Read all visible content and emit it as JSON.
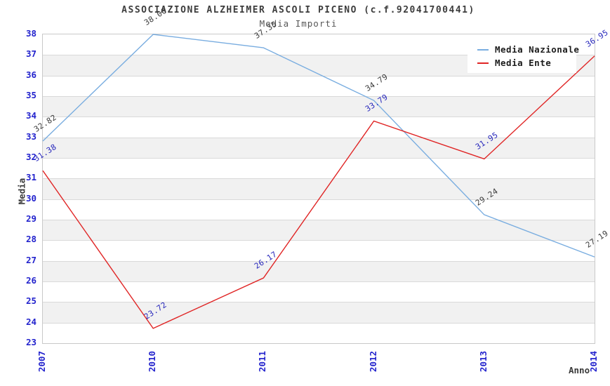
{
  "title": "ASSOCIAZIONE ALZHEIMER ASCOLI PICENO (c.f.92041700441)",
  "subtitle": "Media Importi",
  "chart_data": {
    "type": "line",
    "categories": [
      "2007",
      "2010",
      "2011",
      "2012",
      "2013",
      "2014"
    ],
    "series": [
      {
        "name": "Media Nazionale",
        "color": "#79ade0",
        "label_color": "#3a3a3a",
        "values": [
          32.82,
          38.0,
          37.35,
          34.79,
          29.24,
          27.19
        ]
      },
      {
        "name": "Media Ente",
        "color": "#e02525",
        "label_color": "#2525bb",
        "values": [
          31.38,
          23.72,
          26.17,
          33.79,
          31.95,
          36.95
        ]
      }
    ],
    "xlabel": "Anno",
    "ylabel": "Media",
    "ylim": [
      23,
      38
    ],
    "ytick_step": 1,
    "value_label_decimals": 2,
    "legend_position": "top-right",
    "grid": "horizontal-only",
    "plot_band_colors": [
      "#ffffff",
      "#f1f1f1"
    ],
    "gridline_color": "#d9d9d9",
    "plot_border_color": "#c9c9c9",
    "tick_label_color": "#2323cd"
  }
}
